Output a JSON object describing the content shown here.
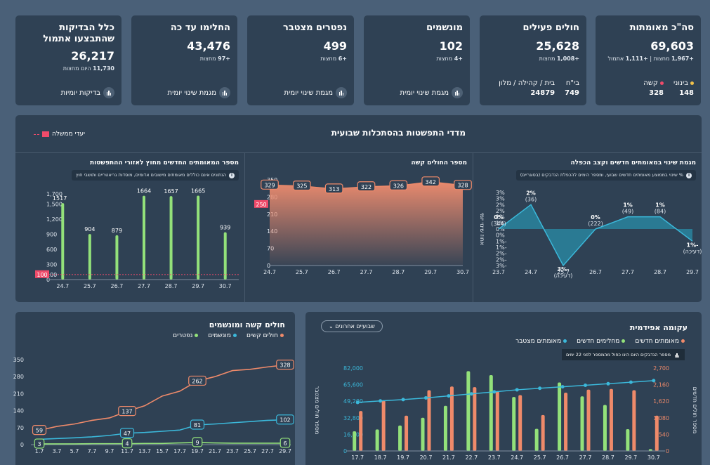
{
  "kpis": [
    {
      "title": "סה\"כ מאומתות",
      "value": "69,603",
      "sub_a": "+1,111",
      "sub_a_label": "אתמול",
      "sub_sep": "|",
      "sub_b": "+1,967",
      "sub_b_label": "מחצות"
    },
    {
      "title": "חולים פעילים",
      "value": "25,628",
      "sub": "+1,008",
      "sub_label": "מחצות"
    },
    {
      "title": "מונשמים",
      "value": "102",
      "sub": "+4",
      "sub_label": "מחצות",
      "link": "מגמת שינוי יומית"
    },
    {
      "title": "נפטרים מצטבר",
      "value": "499",
      "sub": "+6",
      "sub_label": "מחצות",
      "link": "מגמת שינוי יומית"
    },
    {
      "title": "החלימו עד כה",
      "value": "43,476",
      "sub": "+97",
      "sub_label": "מחצות",
      "link": "מגמת שינוי יומית"
    },
    {
      "title": "כלל הבדיקות שהתבצעו אתמול",
      "value": "26,217",
      "sub": "11,730",
      "sub_label": "היום מחצות",
      "link": "בדיקות יומיות"
    }
  ],
  "severity": {
    "mild_label": "בינוני",
    "mild_value": "148",
    "severe_label": "קשה",
    "severe_value": "328"
  },
  "location": {
    "hosp_label": "בי\"ח",
    "hosp_value": "749",
    "home_label": "בית / קהילה / מלון",
    "home_value": "24879"
  },
  "weekly": {
    "title": "מדדי התפשטות בהסתכלות שבועית",
    "gov_label": "יעדי ממשלה",
    "dates": [
      "24.7",
      "25.7",
      "26.7",
      "27.7",
      "28.7",
      "29.7",
      "30.7"
    ]
  },
  "chart_data": [
    {
      "type": "bar",
      "title": "מספר המאומתים החדשים מחוץ לאזורי ההתפשטות",
      "note": "הנתונים אינם כוללים מאומתים מישובים אדומים, מוסדות גריאטריים ותושבי חוץ",
      "categories": [
        "24.7",
        "25.7",
        "26.7",
        "27.7",
        "28.7",
        "29.7",
        "30.7"
      ],
      "values": [
        1517,
        904,
        879,
        1664,
        1657,
        1665,
        939
      ],
      "yticks": [
        "0",
        "100",
        "300",
        "600",
        "900",
        "1,200",
        "1,500",
        "1,700"
      ],
      "ylim": [
        0,
        1700
      ],
      "target": 100,
      "target_label": "100"
    },
    {
      "type": "area",
      "title": "מספר החולים קשה",
      "categories": [
        "24.7",
        "25.7",
        "26.7",
        "27.7",
        "28.7",
        "29.7",
        "30.7"
      ],
      "values": [
        329,
        325,
        313,
        322,
        326,
        342,
        328
      ],
      "yticks": [
        "0",
        "70",
        "140",
        "210",
        "280",
        "350"
      ],
      "ylim": [
        0,
        350
      ],
      "target": 250,
      "target_label": "250"
    },
    {
      "type": "line",
      "title": "מגמת שינוי במאומתים חדשים וקצב הכפלה",
      "note": "% שינוי בממוצע מאומתים חדשים שבועי, ומספר הימים להכפלת הנדבקים (בסוגריים)",
      "categories": [
        "23.7",
        "24.7",
        "25.7",
        "26.7",
        "27.7",
        "28.7",
        "29.7"
      ],
      "values": [
        0,
        2,
        -3,
        0,
        1,
        1,
        -1
      ],
      "pct_labels": [
        "0%",
        "2%",
        "-3%",
        "0%",
        "1%",
        "1%",
        "-1%"
      ],
      "doubling": [
        "(344)",
        "(36)",
        "(דעיכה)",
        "(222)",
        "(49)",
        "(84)",
        "(דעיכה)"
      ],
      "yticks": [
        "-3%",
        "-2%",
        "-2%",
        "-1%",
        "-1%",
        "0%",
        "0%",
        "1%",
        "1%",
        "2%",
        "2%",
        "3%",
        "3%"
      ],
      "ylim": [
        -3,
        3
      ],
      "ylabel": "אחוז שינוי יומי"
    },
    {
      "type": "line",
      "title": "חולים קשה ומונשמים",
      "categories": [
        "1.7",
        "3.7",
        "5.7",
        "7.7",
        "9.7",
        "11.7",
        "13.7",
        "15.7",
        "17.7",
        "19.7",
        "21.7",
        "23.7",
        "25.7",
        "27.7",
        "29.7"
      ],
      "series": [
        {
          "name": "חולים קשים",
          "color": "#ef8a6a",
          "values": [
            59,
            75,
            85,
            100,
            110,
            137,
            160,
            200,
            220,
            262,
            280,
            305,
            310,
            320,
            328
          ]
        },
        {
          "name": "מונשמים",
          "color": "#3bb8da",
          "values": [
            22,
            25,
            28,
            32,
            38,
            47,
            50,
            55,
            60,
            81,
            85,
            90,
            95,
            100,
            102
          ]
        },
        {
          "name": "נפטרים",
          "color": "#93e17a",
          "values": [
            3,
            3,
            3,
            4,
            4,
            4,
            5,
            5,
            7,
            9,
            7,
            6,
            6,
            6,
            6
          ]
        }
      ],
      "point_labels": [
        {
          "series": 0,
          "index": 0,
          "text": "59"
        },
        {
          "series": 0,
          "index": 5,
          "text": "137"
        },
        {
          "series": 0,
          "index": 9,
          "text": "262"
        },
        {
          "series": 0,
          "index": 14,
          "text": "328"
        },
        {
          "series": 1,
          "index": 5,
          "text": "47"
        },
        {
          "series": 1,
          "index": 9,
          "text": "81"
        },
        {
          "series": 1,
          "index": 14,
          "text": "102"
        },
        {
          "series": 2,
          "index": 0,
          "text": "3"
        },
        {
          "series": 2,
          "index": 5,
          "text": "4"
        },
        {
          "series": 2,
          "index": 9,
          "text": "9"
        },
        {
          "series": 2,
          "index": 14,
          "text": "6"
        }
      ],
      "yticks": [
        "0",
        "70",
        "140",
        "210",
        "280",
        "350"
      ],
      "ylim": [
        0,
        350
      ]
    },
    {
      "type": "bar",
      "title": "עקומה אפידמית",
      "filter_label": "שבועיים אחרונים",
      "note": "מספר הנדבקים היום הינו כפול מהמספר לפני 22 ימים",
      "categories": [
        "17.7",
        "18.7",
        "19.7",
        "20.7",
        "21.7",
        "22.7",
        "23.7",
        "24.7",
        "25.7",
        "26.7",
        "27.7",
        "28.7",
        "29.7",
        "30.7"
      ],
      "series": [
        {
          "name": "מאומתים חדשים",
          "color": "#ef8a6a",
          "values": [
            1300,
            1650,
            1150,
            1980,
            2100,
            2080,
            1950,
            1820,
            1170,
            1900,
            2000,
            2020,
            1980,
            1150
          ]
        },
        {
          "name": "מחלימים חדשים",
          "color": "#93e17a",
          "values": [
            640,
            700,
            830,
            1080,
            1470,
            2600,
            2470,
            1760,
            720,
            2230,
            1780,
            1500,
            710,
            60
          ]
        },
        {
          "name": "מאומתים מצטבר",
          "color": "#3bb8da",
          "values": [
            48000,
            49500,
            50800,
            52500,
            54500,
            56500,
            58500,
            60500,
            62000,
            63500,
            65000,
            66500,
            68000,
            69600
          ]
        }
      ],
      "yticks_left": [
        "0",
        "16,400",
        "32,800",
        "49,200",
        "65,600",
        "82,000"
      ],
      "yticks_right": [
        "0",
        "540",
        "1,080",
        "1,620",
        "2,160",
        "2,700"
      ],
      "ylim_left": [
        0,
        82000
      ],
      "ylim_right": [
        0,
        2700
      ],
      "ylabel_left": "מספר חולים מצטבר",
      "ylabel_right": "מספר חולים חדשים"
    }
  ]
}
